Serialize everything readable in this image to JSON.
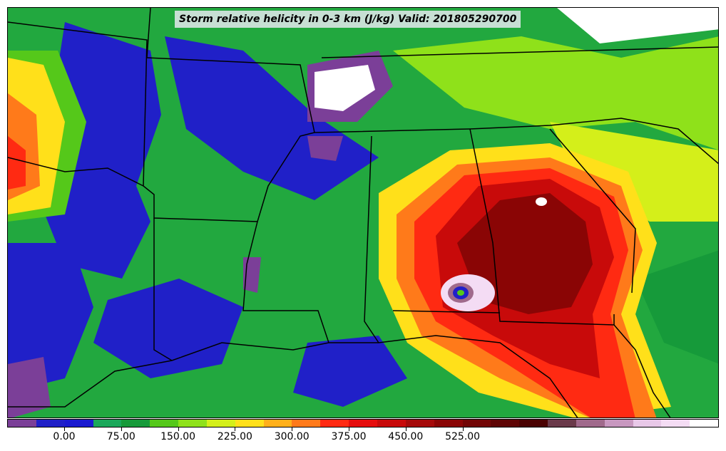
{
  "title": "Storm relative helicity in 0-3 km (J/kg) Valid: 201805290700",
  "colorbar": {
    "colors": [
      "#7b3f98",
      "#2020c8",
      "#1a1ad0",
      "#1aa85a",
      "#169a3a",
      "#55c81a",
      "#8fe11a",
      "#d4ef1a",
      "#ffe01a",
      "#ffb01a",
      "#ff7a1a",
      "#ff2a12",
      "#e60d0d",
      "#c80a0a",
      "#a50a0a",
      "#8a0505",
      "#720505",
      "#5e0404",
      "#4a0202",
      "#6a3a4a",
      "#a06a8c",
      "#c898c0",
      "#e8c8e8",
      "#f4dcf4",
      "#ffffff"
    ],
    "tick_values": [
      "0.00",
      "75.00",
      "150.00",
      "225.00",
      "300.00",
      "375.00",
      "450.00",
      "525.00"
    ]
  }
}
